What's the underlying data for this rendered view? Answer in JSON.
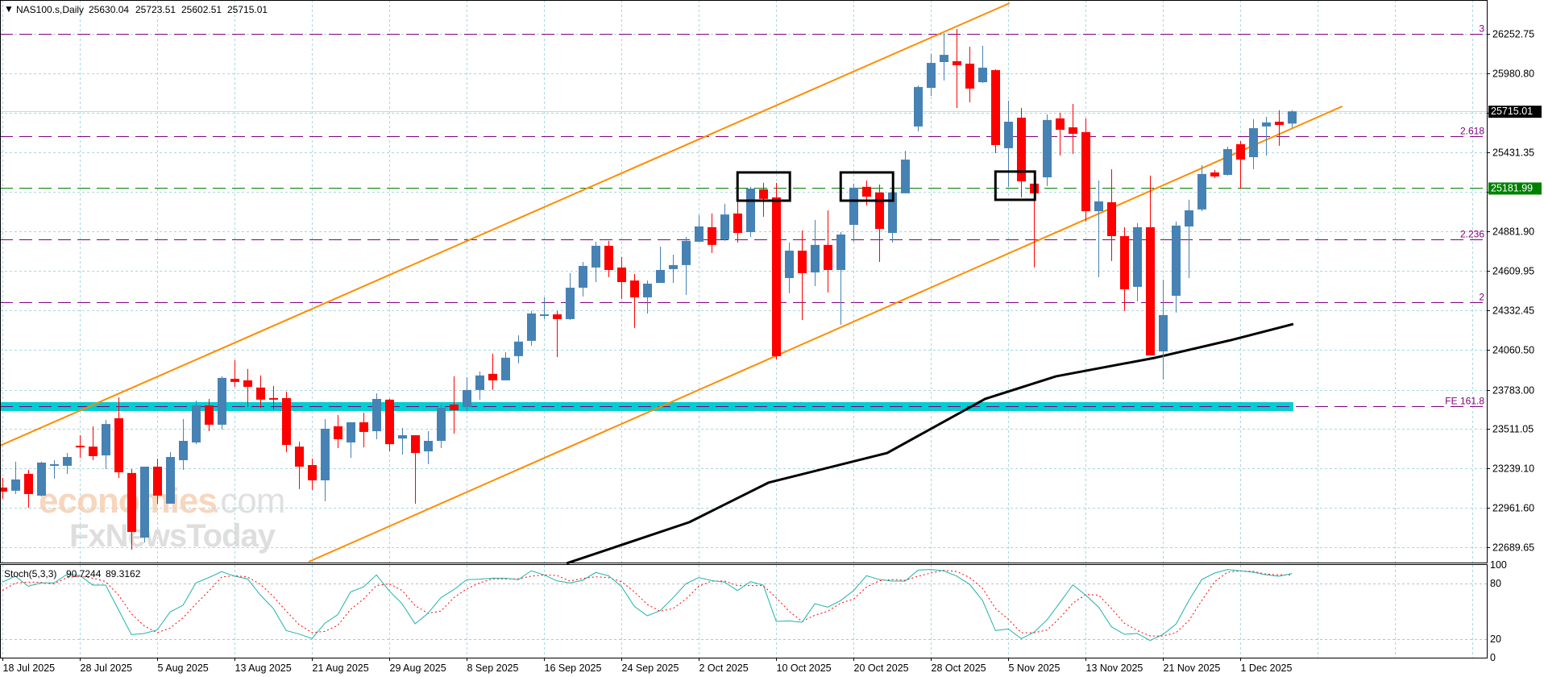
{
  "header": {
    "arrow": "▼",
    "symbol": "NAS100.s,Daily",
    "open": "25630.04",
    "high": "25723.51",
    "low": "25602.51",
    "close": "25715.01"
  },
  "watermark": {
    "brand": "economies",
    "domain": ".com",
    "sub": "FxNewsToday"
  },
  "price_axis": {
    "ticks": [
      26252.75,
      25980.8,
      25706.0,
      25431.35,
      25156.0,
      24881.9,
      24609.95,
      24332.45,
      24060.5,
      23783.0,
      23511.05,
      23239.1,
      22961.6,
      22689.65
    ],
    "visible_labels": [
      "26252.75",
      "25980.80",
      "",
      "25431.35",
      "",
      "24881.90",
      "24609.95",
      "24332.45",
      "24060.50",
      "23783.00",
      "23511.05",
      "23239.10",
      "22961.60",
      "22689.65"
    ],
    "current_price_label": "25715.01",
    "current_price": 25715.01,
    "level_price_label": "25181.99",
    "level_price": 25181.99
  },
  "levels": [
    {
      "label": "3",
      "price": 26252.75,
      "color": "#800080"
    },
    {
      "label": "2.618",
      "price": 25542,
      "color": "#800080"
    },
    {
      "label": "2.236",
      "price": 24827,
      "color": "#800080"
    },
    {
      "label": "2",
      "price": 24390,
      "color": "#800080"
    },
    {
      "label": "FE 161.8",
      "price": 23666,
      "color": "#800080"
    }
  ],
  "stoch": {
    "label": "Stoch(5,3,3)",
    "k_value": "90.7244",
    "d_value": "89.3162",
    "scale_labels": [
      "100",
      "80",
      "20",
      "0"
    ],
    "scale_values": [
      100,
      80,
      20,
      0
    ],
    "k": [
      81.5,
      87.9,
      77.1,
      80.6,
      80.6,
      89.9,
      88.7,
      78.3,
      78.3,
      51.6,
      24.9,
      26.1,
      29.9,
      49.3,
      56.5,
      80.6,
      86.4,
      92.8,
      87.9,
      85.0,
      67.6,
      53.1,
      29.3,
      25.5,
      20.6,
      37.1,
      46.4,
      71.0,
      76.3,
      89.3,
      71.9,
      58.0,
      36.5,
      47.9,
      64.7,
      73.4,
      84.1,
      84.7,
      85.8,
      85.8,
      84.1,
      93.7,
      89.3,
      82.9,
      80.6,
      83.5,
      91.9,
      88.4,
      76.8,
      55.3,
      45.2,
      50.7,
      64.6,
      79.7,
      86.4,
      83.2,
      81.4,
      72.4,
      82.0,
      78.2,
      39.1,
      39.7,
      38.2,
      58.2,
      54.5,
      61.7,
      72.4,
      88.4,
      84.3,
      82.6,
      82.6,
      94.5,
      95.1,
      93.6,
      88.0,
      79.1,
      61.7,
      29.2,
      31.0,
      20.5,
      27.5,
      40.8,
      59.4,
      78.5,
      67.5,
      54.5,
      33.3,
      25.2,
      26.1,
      18.5,
      25.2,
      36.2,
      61.7,
      84.3,
      91.3,
      95.1,
      93.6,
      92.2,
      89.3,
      87.8,
      90.72
    ],
    "d": [
      72.5,
      80.6,
      81.5,
      81.2,
      79.7,
      86.4,
      87.9,
      85.8,
      82.1,
      67.6,
      47.3,
      34.2,
      27.0,
      31.9,
      42.9,
      58.0,
      71.9,
      87.0,
      88.4,
      87.0,
      79.2,
      66.1,
      50.2,
      35.7,
      27.0,
      28.4,
      34.8,
      52.2,
      63.2,
      77.7,
      79.7,
      72.5,
      56.0,
      47.9,
      50.2,
      64.7,
      74.2,
      80.6,
      85.0,
      85.0,
      85.0,
      87.9,
      89.3,
      88.7,
      82.6,
      85.5,
      87.2,
      86.4,
      82.0,
      71.0,
      57.4,
      50.1,
      53.0,
      63.2,
      77.1,
      82.6,
      82.6,
      77.7,
      77.7,
      77.7,
      64.6,
      50.1,
      39.1,
      45.8,
      50.1,
      58.8,
      63.2,
      76.2,
      82.9,
      84.3,
      83.5,
      87.8,
      91.3,
      94.2,
      93.0,
      86.4,
      74.8,
      53.0,
      41.4,
      26.9,
      26.9,
      29.8,
      42.9,
      58.8,
      68.1,
      67.5,
      53.0,
      37.1,
      29.2,
      23.4,
      23.4,
      26.9,
      40.0,
      61.7,
      82.0,
      92.2,
      93.6,
      93.0,
      90.1,
      89.3,
      89.32
    ]
  },
  "chart_data": {
    "type": "candlestick",
    "title": "NAS100.s,Daily",
    "xlim": [
      -0.19,
      115.1
    ],
    "ylim": [
      22583.4,
      26487.7
    ],
    "date_labels": [
      {
        "index": 0,
        "label": "18 Jul 2025"
      },
      {
        "index": 6,
        "label": "28 Jul 2025"
      },
      {
        "index": 12,
        "label": "5 Aug 2025"
      },
      {
        "index": 18,
        "label": "13 Aug 2025"
      },
      {
        "index": 24,
        "label": "21 Aug 2025"
      },
      {
        "index": 30,
        "label": "29 Aug 2025"
      },
      {
        "index": 36,
        "label": "8 Sep 2025"
      },
      {
        "index": 42,
        "label": "16 Sep 2025"
      },
      {
        "index": 48,
        "label": "24 Sep 2025"
      },
      {
        "index": 54,
        "label": "2 Oct 2025"
      },
      {
        "index": 60,
        "label": "10 Oct 2025"
      },
      {
        "index": 66,
        "label": "20 Oct 2025"
      },
      {
        "index": 72,
        "label": "28 Oct 2025"
      },
      {
        "index": 78,
        "label": "5 Nov 2025"
      },
      {
        "index": 84,
        "label": "13 Nov 2025"
      },
      {
        "index": 90,
        "label": "21 Nov 2025"
      },
      {
        "index": 96,
        "label": "1 Dec 2025"
      }
    ],
    "ohlc": [
      [
        23104,
        23171,
        23026,
        23076
      ],
      [
        23082,
        23283,
        23059,
        23160
      ],
      [
        23199,
        23227,
        22964,
        23059
      ],
      [
        23048,
        23283,
        23042,
        23277
      ],
      [
        23260,
        23294,
        23166,
        23266
      ],
      [
        23255,
        23344,
        23199,
        23316
      ],
      [
        23394,
        23467,
        23310,
        23383
      ],
      [
        23388,
        23529,
        23294,
        23322
      ],
      [
        23327,
        23573,
        23232,
        23545
      ],
      [
        23585,
        23730,
        23171,
        23210
      ],
      [
        23205,
        23232,
        22673,
        22796
      ],
      [
        22757,
        23249,
        22724,
        23249
      ],
      [
        23249,
        23305,
        22992,
        23048
      ],
      [
        22992,
        23350,
        22992,
        23316
      ],
      [
        23294,
        23579,
        23227,
        23428
      ],
      [
        23417,
        23708,
        23406,
        23674
      ],
      [
        23674,
        23719,
        23495,
        23540
      ],
      [
        23540,
        23876,
        23506,
        23865
      ],
      [
        23859,
        23988,
        23803,
        23837
      ],
      [
        23848,
        23927,
        23663,
        23803
      ],
      [
        23798,
        23882,
        23657,
        23714
      ],
      [
        23725,
        23809,
        23641,
        23714
      ],
      [
        23725,
        23770,
        23349,
        23400
      ],
      [
        23388,
        23422,
        23093,
        23249
      ],
      [
        23260,
        23305,
        23087,
        23154
      ],
      [
        23154,
        23579,
        23009,
        23512
      ],
      [
        23529,
        23607,
        23378,
        23439
      ],
      [
        23417,
        23557,
        23310,
        23557
      ],
      [
        23557,
        23624,
        23383,
        23490
      ],
      [
        23495,
        23758,
        23439,
        23719
      ],
      [
        23714,
        23719,
        23355,
        23405
      ],
      [
        23444,
        23517,
        23333,
        23467
      ],
      [
        23467,
        23467,
        22992,
        23344
      ],
      [
        23355,
        23495,
        23266,
        23428
      ],
      [
        23428,
        23680,
        23378,
        23657
      ],
      [
        23680,
        23876,
        23478,
        23641
      ],
      [
        23663,
        23870,
        23630,
        23781
      ],
      [
        23781,
        23910,
        23714,
        23882
      ],
      [
        23893,
        24033,
        23781,
        23848
      ],
      [
        23848,
        24044,
        23848,
        24005
      ],
      [
        24016,
        24161,
        23966,
        24117
      ],
      [
        24122,
        24329,
        24088,
        24312
      ],
      [
        24301,
        24424,
        24273,
        24306
      ],
      [
        24306,
        24329,
        24010,
        24273
      ],
      [
        24273,
        24592,
        24267,
        24491
      ],
      [
        24491,
        24670,
        24430,
        24642
      ],
      [
        24631,
        24810,
        24530,
        24782
      ],
      [
        24782,
        24816,
        24564,
        24614
      ],
      [
        24631,
        24704,
        24413,
        24530
      ],
      [
        24541,
        24586,
        24212,
        24424
      ],
      [
        24424,
        24541,
        24312,
        24519
      ],
      [
        24524,
        24776,
        24524,
        24614
      ],
      [
        24620,
        24720,
        24524,
        24648
      ],
      [
        24648,
        24843,
        24441,
        24816
      ],
      [
        24810,
        24995,
        24810,
        24916
      ],
      [
        24911,
        25006,
        24732,
        24788
      ],
      [
        24827,
        25073,
        24816,
        24999
      ],
      [
        25006,
        25146,
        24804,
        24871
      ],
      [
        24877,
        25191,
        24843,
        25179
      ],
      [
        25174,
        25219,
        24983,
        25107
      ],
      [
        25118,
        25219,
        23993,
        24016
      ],
      [
        24558,
        24804,
        24452,
        24748
      ],
      [
        24748,
        24888,
        24267,
        24592
      ],
      [
        24597,
        24961,
        24502,
        24788
      ],
      [
        24788,
        25028,
        24458,
        24614
      ],
      [
        24614,
        24877,
        24234,
        24860
      ],
      [
        24927,
        25213,
        24810,
        25185
      ],
      [
        25191,
        25235,
        25062,
        25123
      ],
      [
        25152,
        25207,
        24670,
        24899
      ],
      [
        24871,
        25185,
        24804,
        25152
      ],
      [
        25146,
        25442,
        25146,
        25380
      ],
      [
        25610,
        25895,
        25576,
        25884
      ],
      [
        25878,
        26113,
        25822,
        26051
      ],
      [
        26057,
        26258,
        25929,
        26107
      ],
      [
        26063,
        26286,
        25738,
        26035
      ],
      [
        26046,
        26163,
        25778,
        25873
      ],
      [
        25917,
        26169,
        25912,
        26018
      ],
      [
        26001,
        26007,
        25425,
        25481
      ],
      [
        25459,
        25789,
        25190,
        25643
      ],
      [
        25671,
        25738,
        25118,
        25229
      ],
      [
        25213,
        25213,
        24631,
        25146
      ],
      [
        25257,
        25694,
        25196,
        25655
      ],
      [
        25666,
        25705,
        25408,
        25587
      ],
      [
        25604,
        25766,
        25419,
        25559
      ],
      [
        25571,
        25666,
        24950,
        25022
      ],
      [
        25022,
        25235,
        24564,
        25090
      ],
      [
        25084,
        25313,
        24676,
        24849
      ],
      [
        24849,
        24911,
        24329,
        24480
      ],
      [
        24497,
        24939,
        24396,
        24911
      ],
      [
        24911,
        25269,
        24021,
        24021
      ],
      [
        24049,
        24547,
        23854,
        24301
      ],
      [
        24435,
        24950,
        24318,
        24922
      ],
      [
        24916,
        25101,
        24558,
        25028
      ],
      [
        25034,
        25341,
        25022,
        25280
      ],
      [
        25291,
        25308,
        25252,
        25263
      ],
      [
        25274,
        25470,
        25269,
        25453
      ],
      [
        25487,
        25509,
        25179,
        25380
      ],
      [
        25397,
        25660,
        25313,
        25598
      ],
      [
        25610,
        25677,
        25408,
        25638
      ],
      [
        25643,
        25722,
        25476,
        25620
      ],
      [
        25630.04,
        25723.51,
        25602.51,
        25715.01
      ]
    ],
    "moving_average": [
      [
        43.75,
        22578
      ],
      [
        53.25,
        22863
      ],
      [
        59.4,
        23138
      ],
      [
        68.6,
        23344
      ],
      [
        76.2,
        23719
      ],
      [
        81.7,
        23876
      ],
      [
        89.4,
        24005
      ],
      [
        95.25,
        24127
      ],
      [
        100.1,
        24239
      ]
    ],
    "channel": {
      "upper": [
        [
          -0.19,
          23395
        ],
        [
          78.1,
          26466
        ]
      ],
      "lower": [
        [
          23.75,
          22589
        ],
        [
          103.9,
          25750
        ]
      ]
    },
    "band": {
      "from_index": -0.19,
      "to_index": 100.1,
      "low": 23635,
      "high": 23697
    },
    "boxes": [
      {
        "from_index": 57.0,
        "to_index": 61.06,
        "low": 25095,
        "high": 25291
      },
      {
        "from_index": 65.0,
        "to_index": 69.06,
        "low": 25095,
        "high": 25291
      },
      {
        "from_index": 77.0,
        "to_index": 80.06,
        "low": 25101,
        "high": 25297
      }
    ],
    "colors": {
      "bull": "#4682B4",
      "bear": "#FF0000",
      "channel": "#FF8C00",
      "ma": "#000000",
      "band": "#00CED1",
      "grid": "#a8d8e0",
      "level_green": "#008000",
      "stoch_k": "#20B2AA",
      "stoch_d": "#FF0000"
    }
  }
}
